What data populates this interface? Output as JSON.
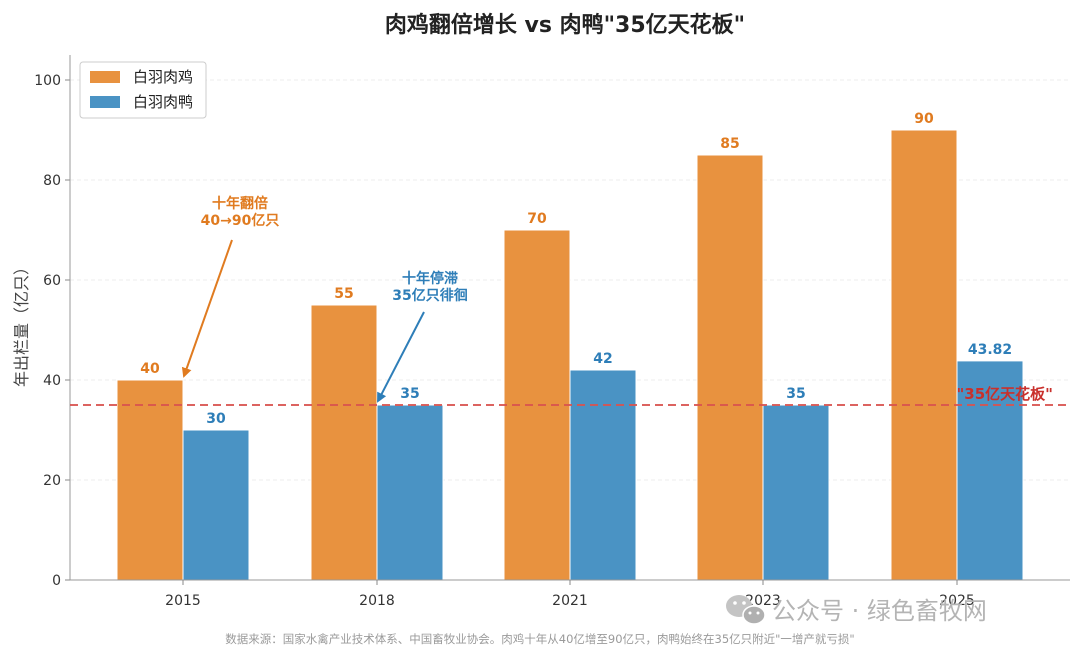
{
  "chart_data": {
    "type": "bar",
    "title": "肉鸡翻倍增长 vs 肉鸭\"35亿天花板\"",
    "ylabel": "年出栏量（亿只）",
    "xlabel": "",
    "categories": [
      "2015",
      "2018",
      "2021",
      "2023",
      "2025"
    ],
    "series": [
      {
        "name": "白羽肉鸡",
        "values": [
          40,
          55,
          70,
          85,
          90
        ],
        "labels": [
          "40",
          "55",
          "70",
          "85",
          "90"
        ],
        "color": "#E8923F"
      },
      {
        "name": "白羽肉鸭",
        "values": [
          30,
          35,
          42,
          35,
          43.82
        ],
        "labels": [
          "30",
          "35",
          "42",
          "35",
          "43.82"
        ],
        "color": "#4A93C4"
      }
    ],
    "ylim": [
      0,
      105
    ],
    "yticks": [
      0,
      20,
      40,
      60,
      80,
      100
    ],
    "grid": true,
    "legend_position": "top-left",
    "reference_line": {
      "value": 35,
      "label": "\"35亿天花板\"",
      "color": "#D9534F"
    },
    "annotations": [
      {
        "lines": [
          "十年翻倍",
          "40→90亿只"
        ],
        "color": "#E07B20",
        "target_category": "2015",
        "target_value": 40
      },
      {
        "lines": [
          "十年停滞",
          "35亿只徘徊"
        ],
        "color": "#2E7EB8",
        "target_category": "2018",
        "target_value": 35
      }
    ]
  },
  "footer": {
    "source": "数据来源：国家水禽产业技术体系、中国畜牧业协会。肉鸡十年从40亿增至90亿只，肉鸭始终在35亿只附近\"一增产就亏损\"",
    "watermark": "公众号 · 绿色畜牧网"
  }
}
